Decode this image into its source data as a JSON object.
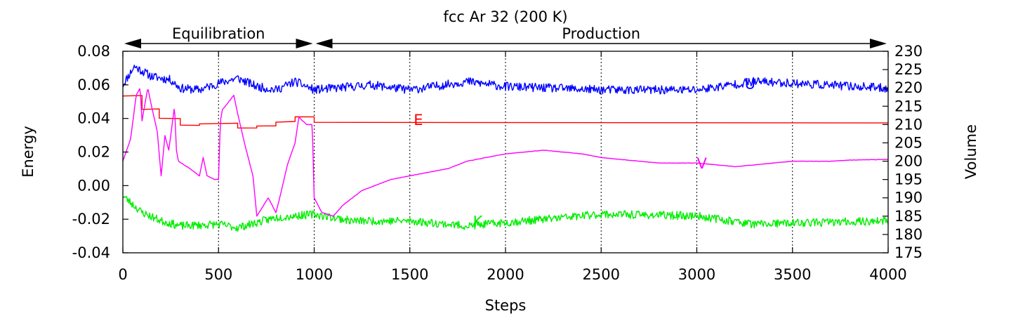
{
  "chart_data": {
    "type": "line",
    "title": "fcc Ar 32 (200 K)",
    "xlabel": "Steps",
    "ylabel": "Energy",
    "y2label": "Volume",
    "xlim": [
      0,
      4000
    ],
    "ylim": [
      -0.04,
      0.08
    ],
    "y2lim": [
      175,
      230
    ],
    "xticks": [
      0,
      500,
      1000,
      1500,
      2000,
      2500,
      3000,
      3500,
      4000
    ],
    "yticks": [
      -0.04,
      -0.02,
      0.0,
      0.02,
      0.04,
      0.06,
      0.08
    ],
    "ytick_labels": [
      "-0.04",
      "-0.02",
      "0.00",
      "0.02",
      "0.04",
      "0.06",
      "0.08"
    ],
    "y2ticks": [
      175,
      180,
      185,
      190,
      195,
      200,
      205,
      210,
      215,
      220,
      225,
      230
    ],
    "grid": "vertical dashed",
    "phases": [
      {
        "label": "Equilibration",
        "start": 0,
        "end": 1000
      },
      {
        "label": "Production",
        "start": 1000,
        "end": 4000
      }
    ],
    "series": [
      {
        "name": "U",
        "label": "U",
        "axis": "left",
        "color": "#0000ff",
        "noise": 0.0026,
        "seed": 11,
        "label_x": 3250,
        "label_y": 0.061,
        "points": [
          [
            0,
            0.06
          ],
          [
            60,
            0.071
          ],
          [
            150,
            0.065
          ],
          [
            250,
            0.063
          ],
          [
            300,
            0.058
          ],
          [
            400,
            0.057
          ],
          [
            500,
            0.061
          ],
          [
            600,
            0.064
          ],
          [
            700,
            0.059
          ],
          [
            800,
            0.057
          ],
          [
            900,
            0.062
          ],
          [
            1000,
            0.057
          ],
          [
            1100,
            0.058
          ],
          [
            1300,
            0.06
          ],
          [
            1500,
            0.057
          ],
          [
            1800,
            0.062
          ],
          [
            2000,
            0.059
          ],
          [
            2500,
            0.057
          ],
          [
            3000,
            0.057
          ],
          [
            3300,
            0.062
          ],
          [
            3500,
            0.061
          ],
          [
            4000,
            0.058
          ]
        ]
      },
      {
        "name": "K",
        "label": "K",
        "axis": "left",
        "color": "#00ee00",
        "noise": 0.0024,
        "seed": 23,
        "label_x": 1830,
        "label_y": -0.021,
        "points": [
          [
            0,
            -0.006
          ],
          [
            100,
            -0.016
          ],
          [
            200,
            -0.021
          ],
          [
            300,
            -0.024
          ],
          [
            500,
            -0.023
          ],
          [
            600,
            -0.025
          ],
          [
            800,
            -0.019
          ],
          [
            1000,
            -0.017
          ],
          [
            1200,
            -0.021
          ],
          [
            1500,
            -0.021
          ],
          [
            1800,
            -0.024
          ],
          [
            2200,
            -0.02
          ],
          [
            2500,
            -0.017
          ],
          [
            3000,
            -0.018
          ],
          [
            3300,
            -0.023
          ],
          [
            3600,
            -0.022
          ],
          [
            4000,
            -0.021
          ]
        ]
      },
      {
        "name": "E",
        "label": "E",
        "axis": "left",
        "color": "#ff0000",
        "noise": 0.00025,
        "seed": 5,
        "step": true,
        "label_x": 1520,
        "label_y": 0.0395,
        "points": [
          [
            0,
            0.0535
          ],
          [
            100,
            0.0535
          ],
          [
            100,
            0.0455
          ],
          [
            190,
            0.0455
          ],
          [
            190,
            0.04
          ],
          [
            300,
            0.04
          ],
          [
            300,
            0.036
          ],
          [
            400,
            0.036
          ],
          [
            400,
            0.037
          ],
          [
            600,
            0.037
          ],
          [
            600,
            0.0345
          ],
          [
            700,
            0.0345
          ],
          [
            700,
            0.0355
          ],
          [
            800,
            0.0355
          ],
          [
            800,
            0.038
          ],
          [
            900,
            0.038
          ],
          [
            900,
            0.041
          ],
          [
            1000,
            0.041
          ],
          [
            1000,
            0.0375
          ],
          [
            4000,
            0.0375
          ]
        ]
      },
      {
        "name": "V",
        "label": "V",
        "axis": "right",
        "color": "#ff00ff",
        "noise": 0.05,
        "seed": 7,
        "label_x": 3000,
        "label_y": 199.5,
        "points": [
          [
            0,
            200
          ],
          [
            40,
            206
          ],
          [
            70,
            218
          ],
          [
            90,
            220
          ],
          [
            100,
            211
          ],
          [
            130,
            220
          ],
          [
            150,
            215
          ],
          [
            180,
            208
          ],
          [
            200,
            196
          ],
          [
            220,
            207
          ],
          [
            240,
            203
          ],
          [
            270,
            215
          ],
          [
            280,
            203
          ],
          [
            290,
            200
          ],
          [
            350,
            198
          ],
          [
            400,
            196
          ],
          [
            420,
            201
          ],
          [
            440,
            196
          ],
          [
            480,
            195
          ],
          [
            500,
            195
          ],
          [
            510,
            211
          ],
          [
            520,
            214
          ],
          [
            550,
            216
          ],
          [
            580,
            218
          ],
          [
            600,
            213
          ],
          [
            640,
            204
          ],
          [
            680,
            196
          ],
          [
            700,
            185
          ],
          [
            760,
            190
          ],
          [
            800,
            186
          ],
          [
            820,
            190
          ],
          [
            860,
            199
          ],
          [
            900,
            205
          ],
          [
            920,
            212
          ],
          [
            960,
            210
          ],
          [
            990,
            210
          ],
          [
            1000,
            190
          ],
          [
            1020,
            188
          ],
          [
            1040,
            186
          ],
          [
            1100,
            185
          ],
          [
            1150,
            188
          ],
          [
            1200,
            190
          ],
          [
            1250,
            192
          ],
          [
            1300,
            193
          ],
          [
            1400,
            195
          ],
          [
            1500,
            196
          ],
          [
            1600,
            197
          ],
          [
            1700,
            198
          ],
          [
            1800,
            200
          ],
          [
            1900,
            201
          ],
          [
            2000,
            202
          ],
          [
            2100,
            202.5
          ],
          [
            2200,
            203
          ],
          [
            2300,
            202.5
          ],
          [
            2400,
            202
          ],
          [
            2500,
            201
          ],
          [
            2600,
            200.5
          ],
          [
            2700,
            200
          ],
          [
            2800,
            199.5
          ],
          [
            2900,
            199.5
          ],
          [
            3000,
            199.5
          ],
          [
            3100,
            199
          ],
          [
            3200,
            198.5
          ],
          [
            3300,
            199
          ],
          [
            3400,
            199.5
          ],
          [
            3500,
            200
          ],
          [
            3700,
            200
          ],
          [
            3800,
            200.3
          ],
          [
            4000,
            200.5
          ]
        ]
      }
    ]
  }
}
